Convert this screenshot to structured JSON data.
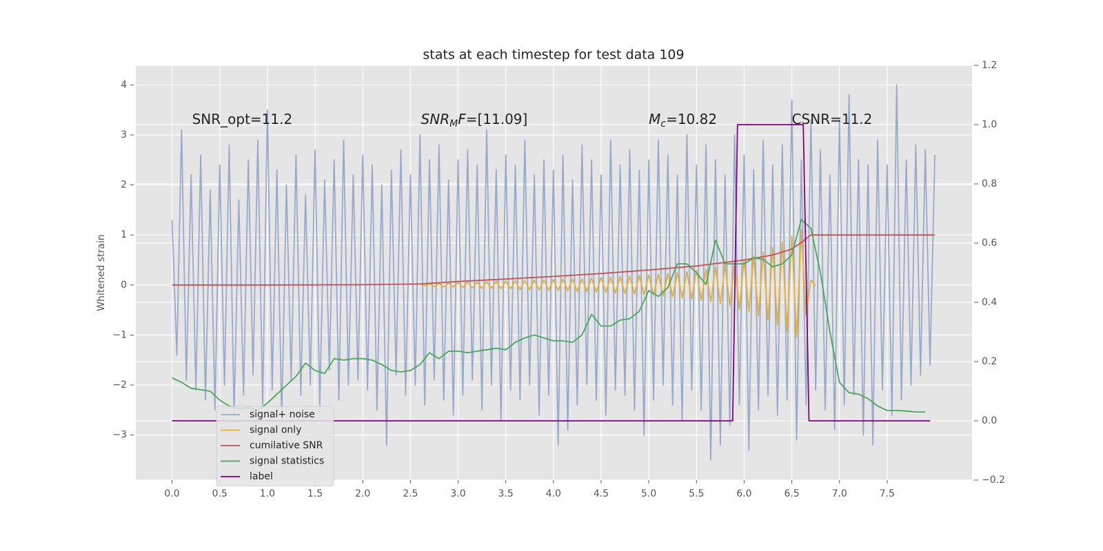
{
  "chart_data": {
    "type": "line",
    "title": "stats at each timestep for test data 109",
    "ylabel": "Whitened strain",
    "xlim": [
      -0.38,
      8.39
    ],
    "ylim": [
      -3.9,
      4.39
    ],
    "y2lim": [
      -0.2,
      1.2
    ],
    "grid": true,
    "legend": "lower left",
    "xticks": [
      {
        "value": 0,
        "label": "0.0"
      },
      {
        "value": 0.5,
        "label": "0.5"
      },
      {
        "value": 1,
        "label": "1.0"
      },
      {
        "value": 1.5,
        "label": "1.5"
      },
      {
        "value": 2,
        "label": "2.0"
      },
      {
        "value": 2.5,
        "label": "2.5"
      },
      {
        "value": 3,
        "label": "3.0"
      },
      {
        "value": 3.5,
        "label": "3.5"
      },
      {
        "value": 4,
        "label": "4.0"
      },
      {
        "value": 4.5,
        "label": "4.5"
      },
      {
        "value": 5,
        "label": "5.0"
      },
      {
        "value": 5.5,
        "label": "5.5"
      },
      {
        "value": 6,
        "label": "6.0"
      },
      {
        "value": 6.5,
        "label": "6.5"
      },
      {
        "value": 7,
        "label": "7.0"
      },
      {
        "value": 7.5,
        "label": "7.5"
      }
    ],
    "yticks": [
      4,
      3,
      2,
      1,
      0,
      {
        "value": -1,
        "label": "−1"
      },
      {
        "value": -2,
        "label": "−2"
      },
      {
        "value": -3,
        "label": "−3"
      }
    ],
    "y2ticks": [
      1.2,
      {
        "value": 1,
        "label": "1.0"
      },
      0.8,
      0.6,
      0.4,
      0.2,
      {
        "value": 0,
        "label": "0.0"
      },
      {
        "value": -0.2,
        "label": "−0.2"
      }
    ],
    "annotations": [
      {
        "text": "SNR_opt=11.2",
        "x": 0.21,
        "y": 3.3
      },
      {
        "base": "SNR",
        "sub": "M",
        "after": "F",
        "tail": "=[11.09]",
        "x": 2.61,
        "y": 3.3
      },
      {
        "base": "M",
        "sub": "c",
        "tail": "=10.82",
        "x": 5.0,
        "y": 3.3
      },
      {
        "text": "CSNR=11.2",
        "x": 6.5,
        "y": 3.3
      }
    ],
    "series": [
      {
        "name": "signal+ noise",
        "color": "#97a9cc",
        "x": [
          0,
          0.05,
          0.1,
          0.15,
          0.2,
          0.25,
          0.3,
          0.35,
          0.4,
          0.45,
          0.5,
          0.55,
          0.6,
          0.65,
          0.7,
          0.75,
          0.8,
          0.85,
          0.9,
          0.95,
          1,
          1.05,
          1.1,
          1.15,
          1.2,
          1.25,
          1.3,
          1.35,
          1.4,
          1.45,
          1.5,
          1.55,
          1.6,
          1.65,
          1.7,
          1.75,
          1.8,
          1.85,
          1.9,
          1.95,
          2,
          2.05,
          2.1,
          2.15,
          2.2,
          2.25,
          2.3,
          2.35,
          2.4,
          2.45,
          2.5,
          2.55,
          2.6,
          2.65,
          2.7,
          2.75,
          2.8,
          2.85,
          2.9,
          2.95,
          3,
          3.05,
          3.1,
          3.15,
          3.2,
          3.25,
          3.3,
          3.35,
          3.4,
          3.45,
          3.5,
          3.55,
          3.6,
          3.65,
          3.7,
          3.75,
          3.8,
          3.85,
          3.9,
          3.95,
          4,
          4.05,
          4.1,
          4.15,
          4.2,
          4.25,
          4.3,
          4.35,
          4.4,
          4.45,
          4.5,
          4.55,
          4.6,
          4.65,
          4.7,
          4.75,
          4.8,
          4.85,
          4.9,
          4.95,
          5,
          5.05,
          5.1,
          5.15,
          5.2,
          5.25,
          5.3,
          5.35,
          5.4,
          5.45,
          5.5,
          5.55,
          5.6,
          5.65,
          5.7,
          5.75,
          5.8,
          5.85,
          5.9,
          5.95,
          6,
          6.05,
          6.1,
          6.15,
          6.2,
          6.25,
          6.3,
          6.35,
          6.4,
          6.45,
          6.5,
          6.55,
          6.6,
          6.65,
          6.7,
          6.75,
          6.8,
          6.85,
          6.9,
          6.95,
          7,
          7.05,
          7.1,
          7.15,
          7.2,
          7.25,
          7.3,
          7.35,
          7.4,
          7.45,
          7.5,
          7.55,
          7.6,
          7.65,
          7.7,
          7.75,
          7.8,
          7.85,
          7.9,
          7.95,
          8
        ],
        "values": [
          1.3,
          -1.4,
          3.1,
          -1.9,
          2.2,
          -2.1,
          2.6,
          -2.3,
          1.9,
          -2.5,
          2.4,
          -2.0,
          2.8,
          -2.6,
          1.7,
          -2.2,
          2.5,
          -1.8,
          2.9,
          -2.4,
          3.5,
          -2.1,
          2.3,
          -2.7,
          2.0,
          -1.9,
          2.6,
          -2.2,
          1.8,
          -2.0,
          2.7,
          -2.4,
          2.1,
          -1.7,
          2.5,
          -2.3,
          2.9,
          -2.0,
          2.2,
          -1.9,
          2.6,
          -2.1,
          2.4,
          -2.5,
          2.0,
          -3.2,
          2.3,
          -1.8,
          2.7,
          -2.2,
          2.2,
          -2.0,
          3.0,
          -2.4,
          2.5,
          -1.9,
          2.8,
          -2.3,
          2.1,
          -2.6,
          2.5,
          -2.2,
          2.7,
          -1.9,
          2.4,
          -2.5,
          3.1,
          -2.0,
          2.3,
          -2.7,
          2.6,
          -2.1,
          2.4,
          -2.3,
          2.9,
          -2.0,
          2.2,
          -2.6,
          2.5,
          -2.2,
          2.3,
          -3.2,
          2.6,
          -2.9,
          2.1,
          -2.4,
          2.8,
          -2.0,
          2.5,
          -2.3,
          2.2,
          -2.6,
          2.9,
          -2.1,
          2.4,
          -2.2,
          2.7,
          -2.5,
          2.3,
          -3.0,
          2.5,
          -2.3,
          2.9,
          -2.0,
          2.6,
          -2.4,
          2.2,
          -2.7,
          3.0,
          -2.1,
          2.4,
          -2.5,
          2.8,
          -3.5,
          2.5,
          -3.2,
          2.2,
          -2.8,
          3.0,
          -2.4,
          2.6,
          -3.3,
          2.3,
          -2.5,
          2.9,
          -2.2,
          2.4,
          -2.6,
          2.8,
          -2.3,
          3.7,
          -3.1,
          2.5,
          -2.4,
          3.3,
          -2.1,
          2.7,
          -2.5,
          2.2,
          -2.9,
          3.3,
          -2.4,
          3.8,
          -2.2,
          2.5,
          -3.0,
          2.4,
          -3.2,
          2.9,
          -2.1,
          2.4,
          -2.6,
          4.0,
          -2.3,
          2.5,
          -2.0,
          2.8,
          -1.8,
          2.7,
          -1.6,
          2.6
        ]
      },
      {
        "name": "signal only",
        "color": "#e5ae38",
        "x": [
          2.6,
          2.65,
          2.7,
          2.75,
          2.8,
          2.85,
          2.9,
          2.95,
          3,
          3.05,
          3.1,
          3.15,
          3.2,
          3.25,
          3.3,
          3.35,
          3.4,
          3.45,
          3.5,
          3.55,
          3.6,
          3.65,
          3.7,
          3.75,
          3.8,
          3.85,
          3.9,
          3.95,
          4,
          4.05,
          4.1,
          4.15,
          4.2,
          4.25,
          4.3,
          4.35,
          4.4,
          4.45,
          4.5,
          4.55,
          4.6,
          4.65,
          4.7,
          4.75,
          4.8,
          4.85,
          4.9,
          4.95,
          5,
          5.05,
          5.1,
          5.15,
          5.2,
          5.25,
          5.3,
          5.35,
          5.4,
          5.45,
          5.5,
          5.55,
          5.6,
          5.65,
          5.7,
          5.75,
          5.8,
          5.85,
          5.9,
          5.95,
          6,
          6.05,
          6.1,
          6.15,
          6.2,
          6.25,
          6.3,
          6.35,
          6.4,
          6.45,
          6.5,
          6.55,
          6.6,
          6.65,
          6.7,
          6.75
        ],
        "values": [
          0.02,
          -0.02,
          0.03,
          -0.03,
          0.03,
          -0.04,
          0.04,
          -0.04,
          0.05,
          -0.05,
          0.06,
          -0.06,
          0.06,
          -0.07,
          0.07,
          -0.07,
          0.08,
          -0.08,
          0.08,
          -0.08,
          0.09,
          -0.09,
          0.09,
          -0.09,
          0.1,
          -0.1,
          0.1,
          -0.11,
          0.11,
          -0.11,
          0.12,
          -0.12,
          0.12,
          -0.13,
          0.13,
          -0.13,
          0.14,
          -0.14,
          0.15,
          -0.15,
          0.16,
          -0.16,
          0.17,
          -0.17,
          0.18,
          -0.18,
          0.19,
          -0.19,
          0.2,
          -0.21,
          0.22,
          -0.22,
          0.23,
          -0.24,
          0.25,
          -0.26,
          0.27,
          -0.28,
          0.3,
          -0.31,
          0.32,
          -0.34,
          0.36,
          -0.38,
          0.4,
          -0.42,
          0.45,
          -0.48,
          0.5,
          -0.54,
          0.58,
          -0.62,
          0.66,
          -0.7,
          0.75,
          -0.8,
          0.86,
          -0.92,
          0.98,
          -1.05,
          1.1,
          -0.6,
          0.1,
          -0.02
        ]
      },
      {
        "name": "cumilative SNR",
        "color": "#c44e52",
        "x": [
          0,
          1,
          2,
          2.6,
          3,
          3.5,
          4,
          4.5,
          5,
          5.5,
          6,
          6.3,
          6.5,
          6.6,
          6.7,
          8
        ],
        "values": [
          0,
          0,
          0.005,
          0.02,
          0.07,
          0.12,
          0.17,
          0.23,
          0.3,
          0.38,
          0.5,
          0.6,
          0.72,
          0.85,
          1.0,
          1.0
        ]
      },
      {
        "name": "signal statistics",
        "color": "#4aa55c",
        "axis": "y2",
        "x": [
          0,
          0.1,
          0.2,
          0.3,
          0.4,
          0.5,
          0.6,
          0.7,
          0.8,
          0.9,
          1,
          1.1,
          1.2,
          1.3,
          1.4,
          1.5,
          1.6,
          1.7,
          1.8,
          1.9,
          2,
          2.1,
          2.2,
          2.3,
          2.4,
          2.5,
          2.6,
          2.7,
          2.8,
          2.9,
          3,
          3.1,
          3.2,
          3.3,
          3.4,
          3.5,
          3.6,
          3.7,
          3.8,
          3.9,
          4,
          4.1,
          4.2,
          4.3,
          4.4,
          4.5,
          4.6,
          4.7,
          4.8,
          4.9,
          5,
          5.1,
          5.2,
          5.3,
          5.4,
          5.5,
          5.6,
          5.7,
          5.8,
          5.9,
          6,
          6.1,
          6.2,
          6.3,
          6.4,
          6.5,
          6.6,
          6.7,
          6.8,
          6.9,
          7,
          7.1,
          7.2,
          7.3,
          7.4,
          7.5,
          7.6,
          7.7,
          7.8,
          7.9
        ],
        "values": [
          0.145,
          0.13,
          0.11,
          0.105,
          0.1,
          0.07,
          0.05,
          0.04,
          0.045,
          0.035,
          0.06,
          0.09,
          0.12,
          0.15,
          0.195,
          0.17,
          0.16,
          0.21,
          0.205,
          0.21,
          0.21,
          0.205,
          0.19,
          0.17,
          0.165,
          0.17,
          0.19,
          0.23,
          0.21,
          0.235,
          0.235,
          0.23,
          0.235,
          0.24,
          0.245,
          0.24,
          0.265,
          0.28,
          0.29,
          0.28,
          0.27,
          0.27,
          0.265,
          0.29,
          0.36,
          0.32,
          0.32,
          0.34,
          0.345,
          0.37,
          0.44,
          0.42,
          0.45,
          0.53,
          0.53,
          0.5,
          0.46,
          0.61,
          0.53,
          0.53,
          0.53,
          0.55,
          0.545,
          0.52,
          0.53,
          0.56,
          0.68,
          0.65,
          0.5,
          0.3,
          0.13,
          0.095,
          0.09,
          0.075,
          0.05,
          0.035,
          0.035,
          0.033,
          0.03,
          0.03
        ]
      },
      {
        "name": "label",
        "color": "#800080",
        "axis": "y2",
        "x": [
          0,
          5.88,
          5.93,
          6.62,
          6.68,
          7.95
        ],
        "values": [
          0,
          0,
          1,
          1,
          0,
          0
        ]
      }
    ]
  }
}
